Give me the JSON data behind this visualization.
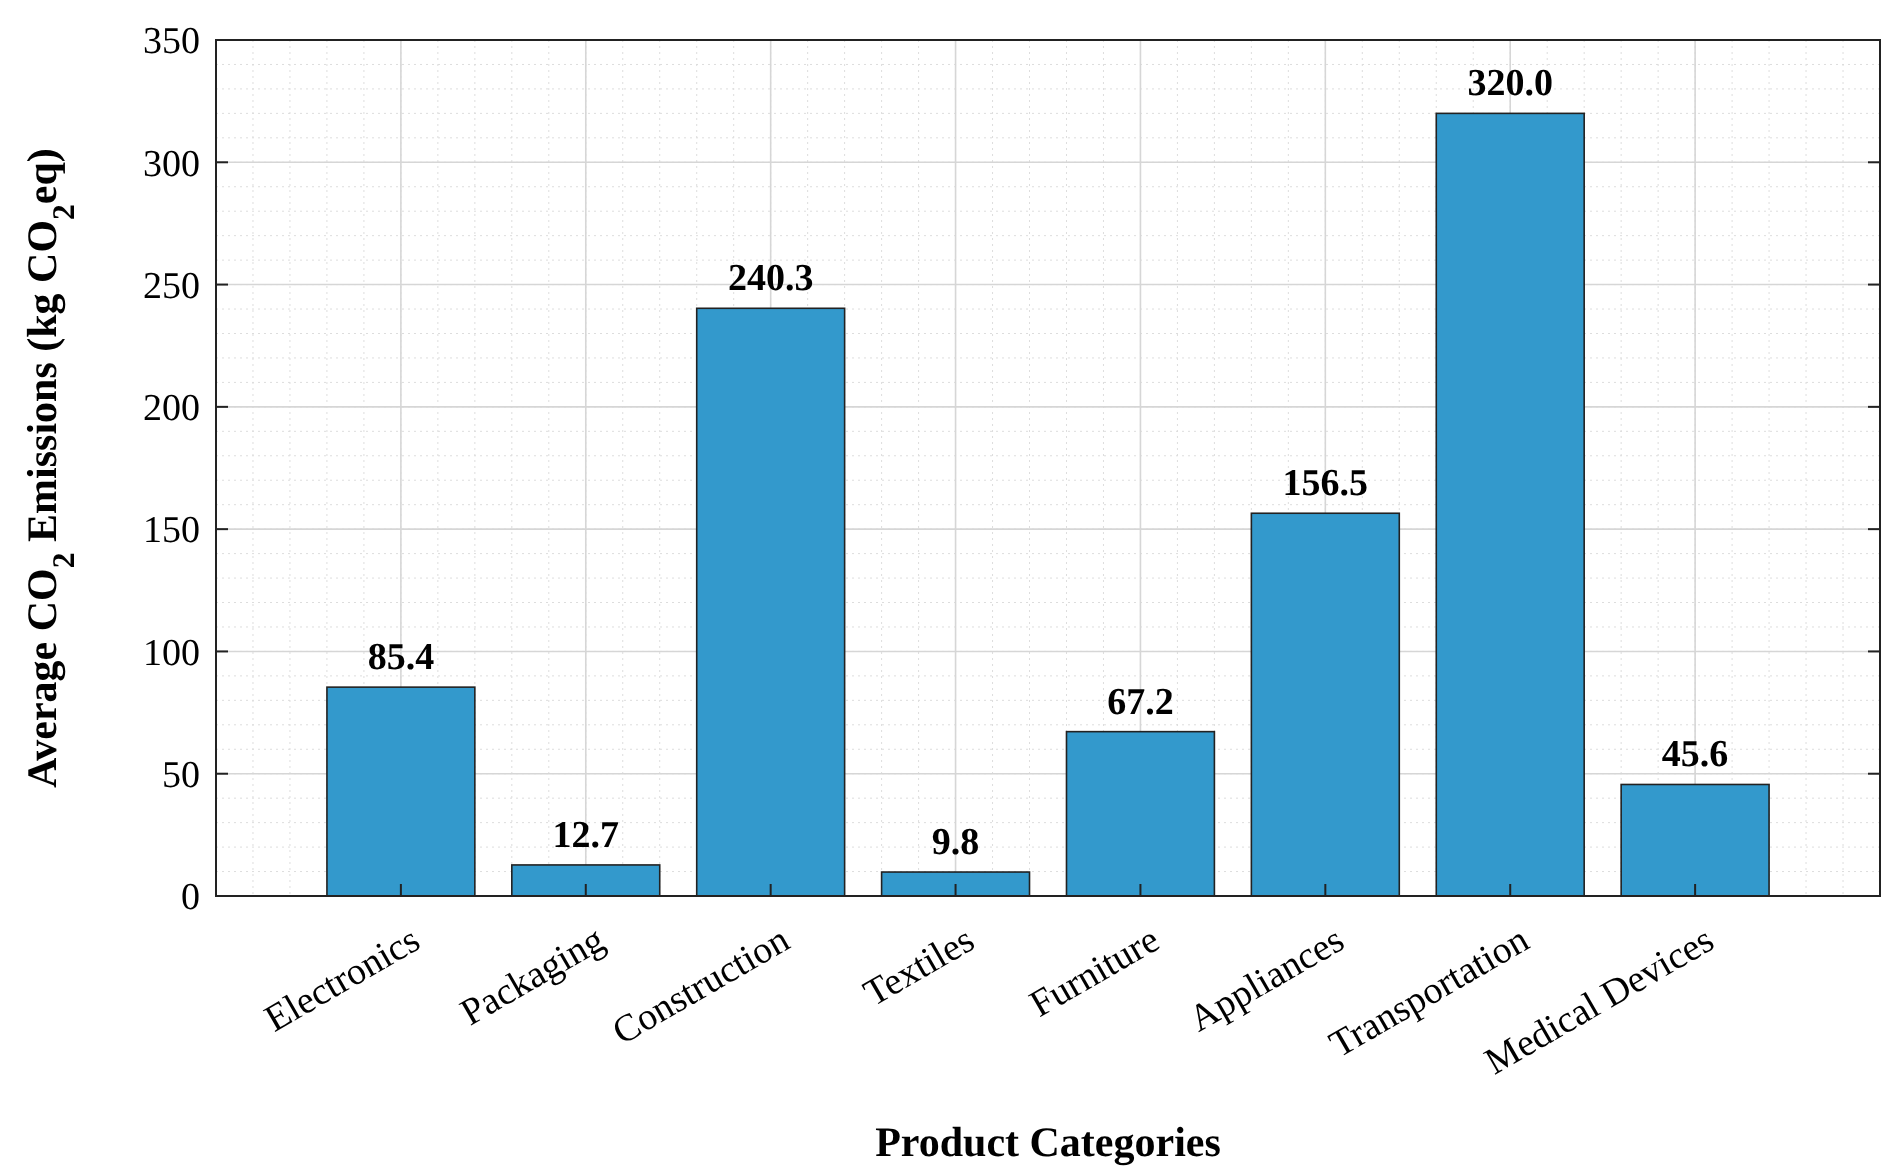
{
  "chart_data": {
    "type": "bar",
    "xlabel": "Product Categories",
    "ylabel": "Average CO$_{2}$ Emissions (kg CO$_{2}$eq)",
    "categories": [
      "Electronics",
      "Packaging",
      "Construction",
      "Textiles",
      "Furniture",
      "Appliances",
      "Transportation",
      "Medical Devices"
    ],
    "values": [
      85.4,
      12.7,
      240.3,
      9.8,
      67.2,
      156.5,
      320.0,
      45.6
    ],
    "value_labels": [
      "85.4",
      "12.7",
      "240.3",
      "9.8",
      "67.2",
      "156.5",
      "320.0",
      "45.6"
    ],
    "color": "#3399cc",
    "ylim": [
      0,
      350
    ],
    "yticks": [
      0,
      50,
      100,
      150,
      200,
      250,
      300,
      350
    ],
    "grid": true
  }
}
